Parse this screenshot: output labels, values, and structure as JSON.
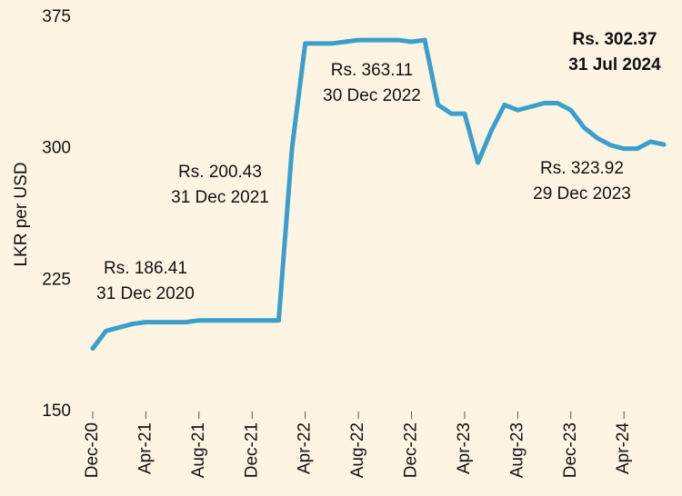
{
  "chart_data": {
    "type": "line",
    "ylabel": "LKR per USD",
    "x": [
      "2020-12",
      "2021-01",
      "2021-02",
      "2021-03",
      "2021-04",
      "2021-05",
      "2021-06",
      "2021-07",
      "2021-08",
      "2021-09",
      "2021-10",
      "2021-11",
      "2021-12",
      "2022-01",
      "2022-02",
      "2022-03",
      "2022-04",
      "2022-05",
      "2022-06",
      "2022-07",
      "2022-08",
      "2022-09",
      "2022-10",
      "2022-11",
      "2022-12",
      "2023-01",
      "2023-02",
      "2023-03",
      "2023-04",
      "2023-05",
      "2023-06",
      "2023-07",
      "2023-08",
      "2023-09",
      "2023-10",
      "2023-11",
      "2023-12",
      "2024-01",
      "2024-02",
      "2024-03",
      "2024-04",
      "2024-05",
      "2024-06",
      "2024-07"
    ],
    "series": [
      {
        "name": "LKR per USD",
        "color": "#3a9fcb",
        "values": [
          186,
          196,
          198,
          200,
          201,
          201,
          201,
          201,
          202,
          202,
          202,
          202,
          202,
          202,
          202,
          300,
          360,
          360,
          360,
          361,
          362,
          362,
          362,
          362,
          361,
          362,
          325,
          320,
          320,
          292,
          310,
          325,
          322,
          324,
          326,
          326,
          322,
          312,
          306,
          302,
          300,
          300,
          304,
          302.37
        ]
      }
    ],
    "xlim": [
      "2020-12",
      "2024-07"
    ],
    "xticks": [
      {
        "value": "2020-12",
        "label": "Dec-20"
      },
      {
        "value": "2021-04",
        "label": "Apr-21"
      },
      {
        "value": "2021-08",
        "label": "Aug-21"
      },
      {
        "value": "2021-12",
        "label": "Dec-21"
      },
      {
        "value": "2022-04",
        "label": "Apr-22"
      },
      {
        "value": "2022-08",
        "label": "Aug-22"
      },
      {
        "value": "2022-12",
        "label": "Dec-22"
      },
      {
        "value": "2023-04",
        "label": "Apr-23"
      },
      {
        "value": "2023-08",
        "label": "Aug-23"
      },
      {
        "value": "2023-12",
        "label": "Dec-23"
      },
      {
        "value": "2024-04",
        "label": "Apr-24"
      }
    ],
    "ylim": [
      150,
      375
    ],
    "yticks": [
      150,
      225,
      300,
      375
    ],
    "annotations": [
      {
        "lines": [
          "Rs. 186.41",
          "31 Dec 2020"
        ],
        "bold": false
      },
      {
        "lines": [
          "Rs. 200.43",
          "31 Dec 2021"
        ],
        "bold": false
      },
      {
        "lines": [
          "Rs. 363.11",
          "30 Dec 2022"
        ],
        "bold": false
      },
      {
        "lines": [
          "Rs. 323.92",
          "29 Dec 2023"
        ],
        "bold": false
      },
      {
        "lines": [
          "Rs. 302.37",
          "31 Jul 2024"
        ],
        "bold": true
      }
    ]
  }
}
